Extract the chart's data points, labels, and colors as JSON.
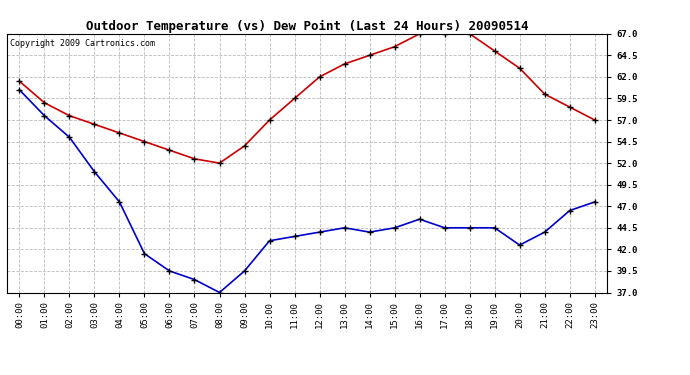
{
  "title": "Outdoor Temperature (vs) Dew Point (Last 24 Hours) 20090514",
  "copyright_text": "Copyright 2009 Cartronics.com",
  "x_labels": [
    "00:00",
    "01:00",
    "02:00",
    "03:00",
    "04:00",
    "05:00",
    "06:00",
    "07:00",
    "08:00",
    "09:00",
    "10:00",
    "11:00",
    "12:00",
    "13:00",
    "14:00",
    "15:00",
    "16:00",
    "17:00",
    "18:00",
    "19:00",
    "20:00",
    "21:00",
    "22:00",
    "23:00"
  ],
  "temp_data": [
    61.5,
    59.0,
    57.5,
    56.5,
    55.5,
    54.5,
    53.5,
    52.5,
    52.0,
    54.0,
    57.0,
    59.5,
    62.0,
    63.5,
    64.5,
    65.5,
    67.0,
    67.0,
    67.0,
    65.0,
    63.0,
    60.0,
    58.5,
    57.0
  ],
  "dew_data": [
    60.5,
    57.5,
    55.0,
    51.0,
    47.5,
    41.5,
    39.5,
    38.5,
    37.0,
    39.5,
    43.0,
    43.5,
    44.0,
    44.5,
    44.0,
    44.5,
    45.5,
    44.5,
    44.5,
    44.5,
    42.5,
    44.0,
    46.5,
    47.5
  ],
  "temp_color": "#cc0000",
  "dew_color": "#0000cc",
  "bg_color": "#ffffff",
  "plot_bg_color": "#ffffff",
  "grid_color": "#bbbbbb",
  "ylim": [
    37.0,
    67.0
  ],
  "yticks": [
    37.0,
    39.5,
    42.0,
    44.5,
    47.0,
    49.5,
    52.0,
    54.5,
    57.0,
    59.5,
    62.0,
    64.5,
    67.0
  ],
  "title_fontsize": 9,
  "copyright_fontsize": 6,
  "tick_fontsize": 6.5,
  "marker": "+",
  "marker_size": 4,
  "marker_edge_width": 1.0,
  "line_width": 1.2
}
